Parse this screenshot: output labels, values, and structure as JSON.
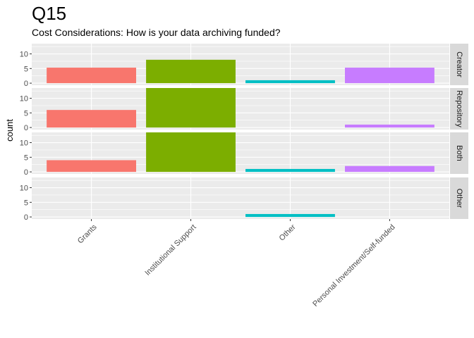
{
  "chart_data": {
    "type": "bar",
    "title": "Q15",
    "subtitle": "Cost Considerations: How is your data archiving funded?",
    "xlabel": "",
    "ylabel": "count",
    "categories": [
      "Grants",
      "Institutional Support",
      "Other",
      "Personal Investment/Self-funded"
    ],
    "colors": [
      "#F8766D",
      "#7CAE00",
      "#00BFC4",
      "#C77CFF"
    ],
    "yticks": [
      0,
      5,
      10
    ],
    "ylim": [
      -0.7,
      13.5
    ],
    "grid": true,
    "facet_position": "right",
    "panels": [
      {
        "label": "Creator",
        "values": [
          5.3,
          8,
          1,
          5.3
        ]
      },
      {
        "label": "Repository",
        "values": [
          6,
          13.5,
          0,
          1
        ]
      },
      {
        "label": "Both",
        "values": [
          4,
          13.5,
          1,
          2
        ]
      },
      {
        "label": "Other",
        "values": [
          0,
          0,
          1,
          0
        ]
      }
    ]
  }
}
